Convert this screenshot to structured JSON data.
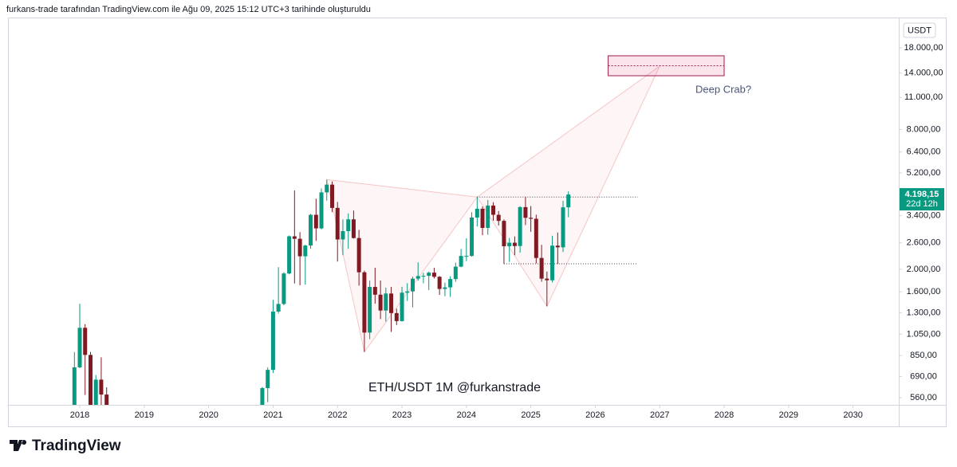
{
  "header": "furkans-trade tarafından TradingView.com ile Ağu 09, 2025 15:12 UTC+3 tarihinde oluşturuldu",
  "footer": "TradingView",
  "chart_data": {
    "type": "candlestick",
    "title": "ETH/USDT 1M  @furkanstrade",
    "currency": "USDT",
    "annotation": "Deep Crab?",
    "price_label": "4.198,15",
    "countdown": "22d 12h",
    "log_scale": true,
    "grid": false,
    "up_color": "#089981",
    "down_color": "#801922",
    "x": [
      2017.917,
      2018,
      2018.083,
      2018.167,
      2018.25,
      2018.333,
      2018.417,
      2020.833,
      2020.917,
      2021,
      2021.083,
      2021.167,
      2021.25,
      2021.333,
      2021.417,
      2021.5,
      2021.583,
      2021.667,
      2021.75,
      2021.833,
      2021.917,
      2022,
      2022.083,
      2022.167,
      2022.25,
      2022.333,
      2022.417,
      2022.5,
      2022.583,
      2022.667,
      2022.75,
      2022.833,
      2022.917,
      2023,
      2023.083,
      2023.167,
      2023.25,
      2023.333,
      2023.417,
      2023.5,
      2023.583,
      2023.667,
      2023.75,
      2023.833,
      2023.917,
      2024,
      2024.083,
      2024.167,
      2024.25,
      2024.333,
      2024.417,
      2024.5,
      2024.583,
      2024.667,
      2024.75,
      2024.833,
      2024.917,
      2025,
      2025.083,
      2025.167,
      2025.25,
      2025.333,
      2025.417,
      2025.5,
      2025.583
    ],
    "open": [
      440,
      756,
      1119,
      855,
      395,
      669,
      577,
      386,
      615,
      737,
      1314,
      1417,
      1918,
      2773,
      2706,
      2275,
      2531,
      3433,
      3000,
      4288,
      4631,
      3676,
      2688,
      2919,
      3281,
      2726,
      1941,
      1067,
      1678,
      1554,
      1328,
      1572,
      1295,
      1196,
      1585,
      1605,
      1822,
      1869,
      1874,
      1934,
      1856,
      1645,
      1671,
      1815,
      2052,
      2282,
      2283,
      3340,
      3646,
      3013,
      3763,
      3433,
      3232,
      2513,
      2602,
      2518,
      3705,
      3332,
      3300,
      2237,
      1822,
      1793,
      2528,
      2486,
      3697
    ],
    "high": [
      880,
      1420,
      1160,
      880,
      700,
      835,
      620,
      622,
      755,
      1476,
      2042,
      1943,
      2797,
      4372,
      2891,
      2551,
      3466,
      4027,
      4460,
      4868,
      4778,
      3900,
      3283,
      3480,
      3581,
      2955,
      1972,
      1786,
      2030,
      1789,
      1665,
      1678,
      1352,
      1680,
      1742,
      1857,
      2141,
      1930,
      1955,
      2029,
      1870,
      1752,
      1865,
      2135,
      2445,
      2717,
      3522,
      4093,
      3730,
      3977,
      3887,
      3563,
      3280,
      2728,
      2770,
      3740,
      4107,
      3745,
      3437,
      2550,
      1955,
      2788,
      2880,
      3940,
      4332
    ],
    "low": [
      420,
      750,
      575,
      365,
      360,
      510,
      415,
      373,
      535,
      714,
      1290,
      1400,
      1902,
      1737,
      1707,
      1718,
      2450,
      2651,
      2970,
      3955,
      3524,
      2159,
      2300,
      2450,
      2711,
      1700,
      881,
      1000,
      1422,
      1220,
      1190,
      1074,
      1150,
      1190,
      1461,
      1370,
      1785,
      1740,
      1626,
      1825,
      1550,
      1531,
      1521,
      1766,
      2040,
      2168,
      2266,
      3056,
      2803,
      2816,
      3240,
      3087,
      2111,
      2150,
      2300,
      2357,
      3100,
      2900,
      2120,
      1767,
      1385,
      1755,
      2110,
      2373,
      3350
    ],
    "close": [
      756,
      1119,
      855,
      395,
      669,
      577,
      455,
      615,
      737,
      1314,
      1417,
      1918,
      2773,
      2706,
      2275,
      2531,
      3433,
      3000,
      4288,
      4631,
      3676,
      2688,
      2919,
      3281,
      2726,
      1941,
      1067,
      1678,
      1554,
      1328,
      1572,
      1295,
      1196,
      1585,
      1605,
      1822,
      1869,
      1874,
      1934,
      1856,
      1645,
      1671,
      1815,
      2052,
      2282,
      2283,
      3340,
      3646,
      3013,
      3763,
      3433,
      3232,
      2513,
      2602,
      2518,
      3705,
      3332,
      3300,
      2237,
      1822,
      1793,
      2528,
      2486,
      3697,
      4198.15
    ],
    "pattern": {
      "x": [
        2021.833,
        2022.417,
        2024.167,
        2025.25,
        2027.0
      ],
      "y": [
        4868,
        881,
        4093,
        1385,
        15000
      ]
    },
    "zone": {
      "x": [
        2026.2,
        2028.0
      ],
      "y": [
        13640,
        16630
      ]
    },
    "levels": [
      {
        "value": 4093,
        "x": [
          2024.167,
          2026.66
        ]
      },
      {
        "value": 2111,
        "x": [
          2024.583,
          2026.66
        ]
      }
    ],
    "xlim": [
      2016.886,
      2030.71
    ],
    "xticks": [
      2018,
      2019,
      2020,
      2021,
      2022,
      2023,
      2024,
      2025,
      2026,
      2027,
      2028,
      2029,
      2030
    ],
    "ylim": [
      521,
      24300
    ],
    "yticks": [
      {
        "value": 18000,
        "label": "18.000,00"
      },
      {
        "value": 14000,
        "label": "14.000,00"
      },
      {
        "value": 11000,
        "label": "11.000,00"
      },
      {
        "value": 8000,
        "label": "8.000,00"
      },
      {
        "value": 6400,
        "label": "6.400,00"
      },
      {
        "value": 5200,
        "label": "5.200,00"
      },
      {
        "value": 3400,
        "label": "3.400,00"
      },
      {
        "value": 2600,
        "label": "2.600,00"
      },
      {
        "value": 2000,
        "label": "2.000,00"
      },
      {
        "value": 1600,
        "label": "1.600,00"
      },
      {
        "value": 1300,
        "label": "1.300,00"
      },
      {
        "value": 1050,
        "label": "1.050,00"
      },
      {
        "value": 850,
        "label": "850,00"
      },
      {
        "value": 690,
        "label": "690,00"
      },
      {
        "value": 560,
        "label": "560,00"
      }
    ]
  }
}
